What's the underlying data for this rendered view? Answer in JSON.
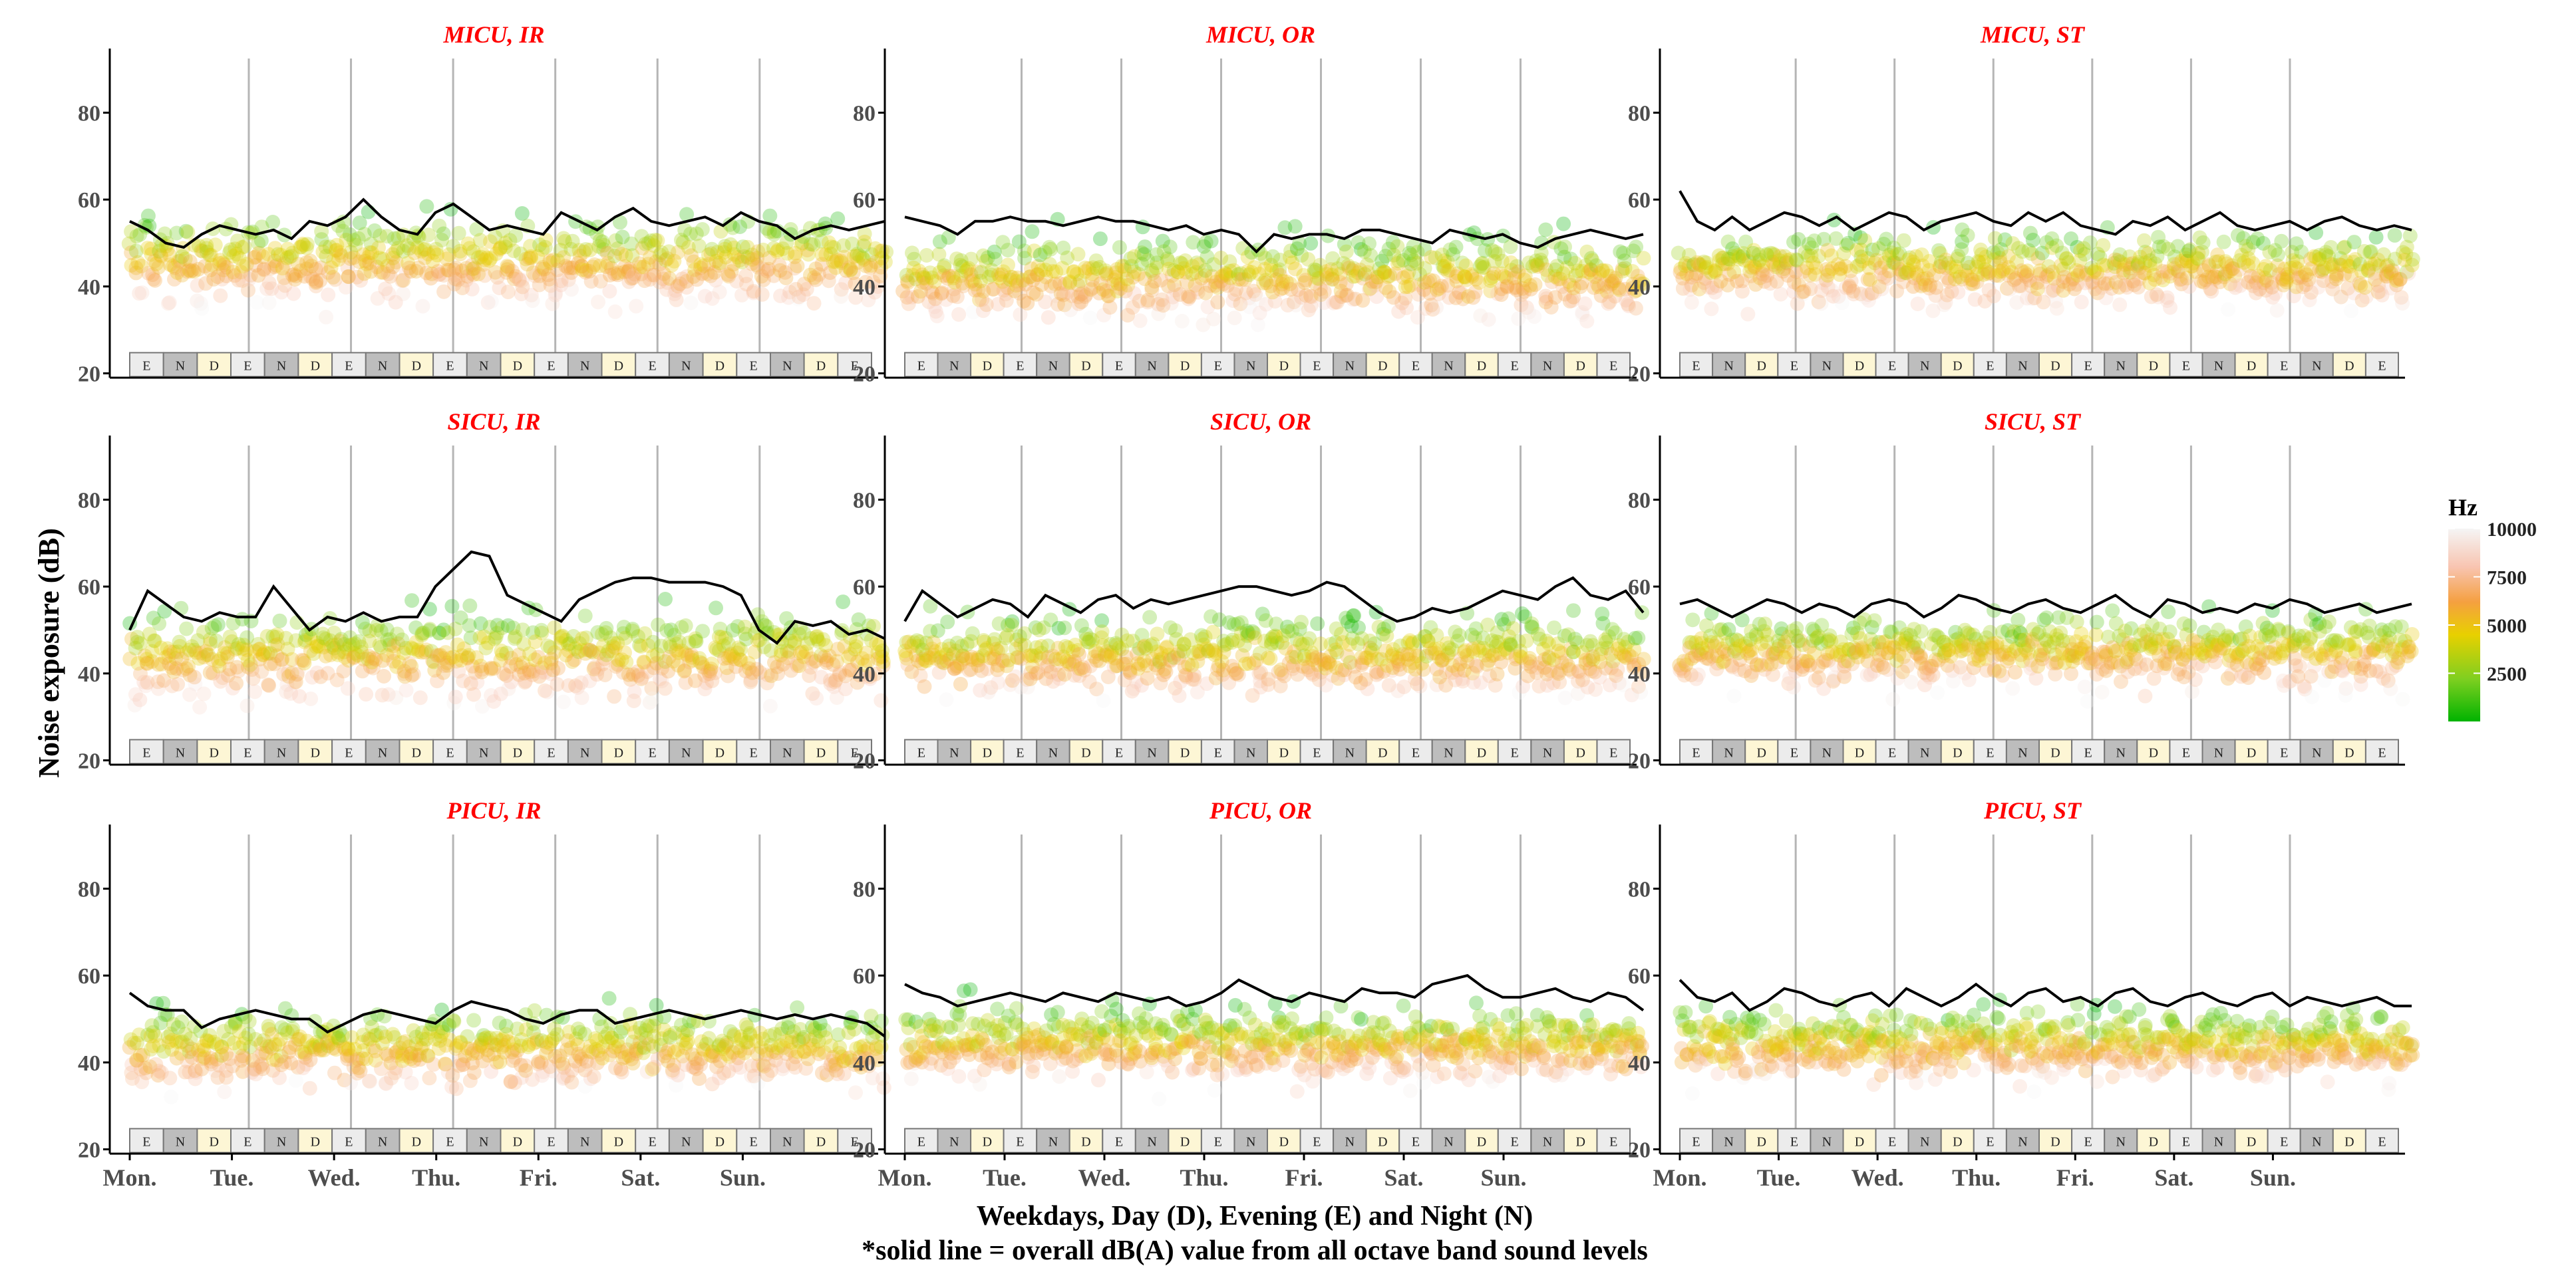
{
  "figure": {
    "y_axis_title": "Noise exposure (dB)",
    "x_axis_title": "Weekdays, Day (D), Evening (E) and Night (N)",
    "footnote": "*solid line = overall dB(A) value from all octave band sound levels"
  },
  "legend": {
    "title": "Hz",
    "ticks": [
      "10000",
      "7500",
      "5000",
      "2500"
    ],
    "tick_values": [
      10000,
      7500,
      5000,
      2500
    ],
    "range": [
      0,
      10000
    ],
    "colors": [
      "#00b300",
      "#7fcf20",
      "#e8d000",
      "#f5a040",
      "#f8c4b0",
      "#f5f5f5"
    ]
  },
  "colors": {
    "title": "#ff0000",
    "line": "#000000",
    "divider": "#b5b5b5",
    "band_day": "#fdf6d5",
    "band_evening": "#ececec",
    "band_night": "#bdbdbd"
  },
  "chart_data": {
    "type": "scatter",
    "facet_titles": [
      "MICU, IR",
      "MICU, OR",
      "MICU, ST",
      "SICU, IR",
      "SICU, OR",
      "SICU, ST",
      "PICU, IR",
      "PICU, OR",
      "PICU, ST"
    ],
    "categories": [
      "Mon.",
      "Tue.",
      "Wed.",
      "Thu.",
      "Fri.",
      "Sat.",
      "Sun."
    ],
    "ylim": [
      19,
      94
    ],
    "y_ticks": [
      "20",
      "40",
      "60",
      "80"
    ],
    "y_tick_values": [
      20,
      40,
      60,
      80
    ],
    "strip_labels": [
      "E",
      "N",
      "D",
      "E",
      "N",
      "D",
      "E",
      "N",
      "D",
      "E",
      "N",
      "D",
      "E",
      "N",
      "D",
      "E",
      "N",
      "D",
      "E",
      "N",
      "D",
      "E"
    ],
    "xlabel": "Weekdays, Day (D), Evening (E) and Night (N)",
    "ylabel": "Noise exposure (dB)",
    "series": [
      {
        "name": "MICU, IR",
        "line": [
          55,
          53,
          50,
          49,
          52,
          54,
          53,
          52,
          53,
          51,
          55,
          54,
          56,
          60,
          56,
          53,
          52,
          57,
          59,
          56,
          53,
          54,
          53,
          52,
          57,
          55,
          53,
          56,
          58,
          55,
          54,
          55,
          56,
          54,
          57,
          55,
          54,
          51,
          53,
          54,
          53,
          54,
          55
        ],
        "scatter_mean": 46,
        "scatter_spread": 9
      },
      {
        "name": "MICU, OR",
        "line": [
          56,
          55,
          54,
          52,
          55,
          55,
          56,
          55,
          55,
          54,
          55,
          56,
          55,
          55,
          54,
          53,
          54,
          52,
          53,
          52,
          48,
          52,
          51,
          52,
          52,
          51,
          53,
          53,
          52,
          51,
          50,
          53,
          52,
          51,
          52,
          50,
          49,
          51,
          52,
          53,
          52,
          51,
          52
        ],
        "scatter_mean": 42,
        "scatter_spread": 8
      },
      {
        "name": "MICU, ST",
        "line": [
          62,
          55,
          53,
          56,
          53,
          55,
          57,
          56,
          54,
          56,
          53,
          55,
          57,
          56,
          53,
          55,
          56,
          57,
          55,
          54,
          57,
          55,
          57,
          54,
          53,
          52,
          55,
          54,
          56,
          53,
          55,
          57,
          54,
          53,
          54,
          55,
          53,
          55,
          56,
          54,
          53,
          54,
          53
        ],
        "scatter_mean": 44,
        "scatter_spread": 7
      },
      {
        "name": "SICU, IR",
        "line": [
          50,
          59,
          56,
          53,
          52,
          54,
          53,
          53,
          60,
          55,
          50,
          53,
          52,
          54,
          52,
          53,
          53,
          60,
          64,
          68,
          67,
          58,
          56,
          54,
          52,
          57,
          59,
          61,
          62,
          62,
          61,
          61,
          61,
          60,
          58,
          50,
          47,
          52,
          51,
          52,
          49,
          50,
          48
        ],
        "scatter_mean": 44,
        "scatter_spread": 9
      },
      {
        "name": "SICU, OR",
        "line": [
          52,
          59,
          56,
          53,
          55,
          57,
          56,
          53,
          58,
          56,
          54,
          57,
          58,
          55,
          57,
          56,
          57,
          58,
          59,
          60,
          60,
          59,
          58,
          59,
          61,
          60,
          57,
          54,
          52,
          53,
          55,
          54,
          55,
          57,
          59,
          58,
          57,
          60,
          62,
          58,
          57,
          59,
          54
        ],
        "scatter_mean": 44,
        "scatter_spread": 8
      },
      {
        "name": "SICU, ST",
        "line": [
          56,
          57,
          55,
          53,
          55,
          57,
          56,
          54,
          56,
          55,
          53,
          56,
          57,
          56,
          53,
          55,
          58,
          57,
          55,
          54,
          56,
          57,
          55,
          54,
          56,
          58,
          55,
          53,
          57,
          56,
          54,
          55,
          54,
          56,
          55,
          57,
          56,
          54,
          55,
          56,
          54,
          55,
          56
        ],
        "scatter_mean": 45,
        "scatter_spread": 7
      },
      {
        "name": "PICU, IR",
        "line": [
          56,
          53,
          52,
          52,
          48,
          50,
          51,
          52,
          51,
          50,
          50,
          47,
          49,
          51,
          52,
          51,
          50,
          49,
          52,
          54,
          53,
          52,
          50,
          49,
          51,
          52,
          52,
          49,
          50,
          51,
          52,
          51,
          50,
          51,
          52,
          51,
          50,
          51,
          50,
          51,
          50,
          49,
          46
        ],
        "scatter_mean": 43,
        "scatter_spread": 8
      },
      {
        "name": "PICU, OR",
        "line": [
          58,
          56,
          55,
          53,
          54,
          55,
          56,
          55,
          54,
          56,
          55,
          54,
          56,
          55,
          54,
          55,
          53,
          54,
          56,
          59,
          57,
          55,
          54,
          56,
          55,
          54,
          57,
          56,
          56,
          55,
          58,
          59,
          60,
          57,
          55,
          55,
          56,
          57,
          55,
          54,
          56,
          55,
          52
        ],
        "scatter_mean": 44,
        "scatter_spread": 7
      },
      {
        "name": "PICU, ST",
        "line": [
          59,
          55,
          54,
          56,
          52,
          54,
          57,
          56,
          54,
          53,
          55,
          56,
          53,
          57,
          55,
          53,
          55,
          58,
          55,
          53,
          56,
          57,
          54,
          55,
          53,
          56,
          57,
          54,
          53,
          55,
          56,
          54,
          53,
          55,
          56,
          53,
          55,
          54,
          53,
          54,
          55,
          53,
          53
        ],
        "scatter_mean": 44,
        "scatter_spread": 7
      }
    ]
  }
}
